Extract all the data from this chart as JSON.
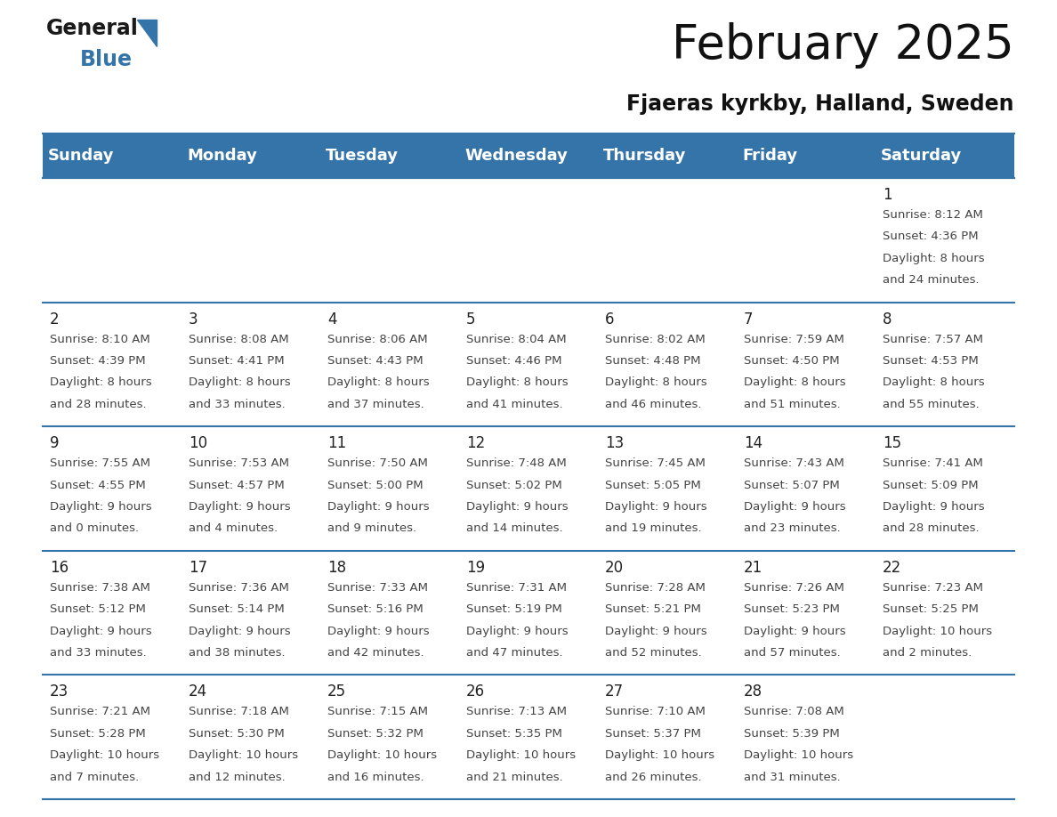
{
  "title": "February 2025",
  "subtitle": "Fjaeras kyrkby, Halland, Sweden",
  "header_color": "#3574a8",
  "header_text_color": "#ffffff",
  "days_of_week": [
    "Sunday",
    "Monday",
    "Tuesday",
    "Wednesday",
    "Thursday",
    "Friday",
    "Saturday"
  ],
  "background_color": "#ffffff",
  "cell_bg_white": "#ffffff",
  "cell_bg_gray": "#eef1f5",
  "border_color": "#3574a8",
  "day_number_color": "#222222",
  "info_text_color": "#444444",
  "calendar_data": [
    [
      {
        "day": null
      },
      {
        "day": null
      },
      {
        "day": null
      },
      {
        "day": null
      },
      {
        "day": null
      },
      {
        "day": null
      },
      {
        "day": 1,
        "sunrise": "8:12 AM",
        "sunset": "4:36 PM",
        "daylight": "8 hours and 24 minutes."
      }
    ],
    [
      {
        "day": 2,
        "sunrise": "8:10 AM",
        "sunset": "4:39 PM",
        "daylight": "8 hours and 28 minutes."
      },
      {
        "day": 3,
        "sunrise": "8:08 AM",
        "sunset": "4:41 PM",
        "daylight": "8 hours and 33 minutes."
      },
      {
        "day": 4,
        "sunrise": "8:06 AM",
        "sunset": "4:43 PM",
        "daylight": "8 hours and 37 minutes."
      },
      {
        "day": 5,
        "sunrise": "8:04 AM",
        "sunset": "4:46 PM",
        "daylight": "8 hours and 41 minutes."
      },
      {
        "day": 6,
        "sunrise": "8:02 AM",
        "sunset": "4:48 PM",
        "daylight": "8 hours and 46 minutes."
      },
      {
        "day": 7,
        "sunrise": "7:59 AM",
        "sunset": "4:50 PM",
        "daylight": "8 hours and 51 minutes."
      },
      {
        "day": 8,
        "sunrise": "7:57 AM",
        "sunset": "4:53 PM",
        "daylight": "8 hours and 55 minutes."
      }
    ],
    [
      {
        "day": 9,
        "sunrise": "7:55 AM",
        "sunset": "4:55 PM",
        "daylight": "9 hours and 0 minutes."
      },
      {
        "day": 10,
        "sunrise": "7:53 AM",
        "sunset": "4:57 PM",
        "daylight": "9 hours and 4 minutes."
      },
      {
        "day": 11,
        "sunrise": "7:50 AM",
        "sunset": "5:00 PM",
        "daylight": "9 hours and 9 minutes."
      },
      {
        "day": 12,
        "sunrise": "7:48 AM",
        "sunset": "5:02 PM",
        "daylight": "9 hours and 14 minutes."
      },
      {
        "day": 13,
        "sunrise": "7:45 AM",
        "sunset": "5:05 PM",
        "daylight": "9 hours and 19 minutes."
      },
      {
        "day": 14,
        "sunrise": "7:43 AM",
        "sunset": "5:07 PM",
        "daylight": "9 hours and 23 minutes."
      },
      {
        "day": 15,
        "sunrise": "7:41 AM",
        "sunset": "5:09 PM",
        "daylight": "9 hours and 28 minutes."
      }
    ],
    [
      {
        "day": 16,
        "sunrise": "7:38 AM",
        "sunset": "5:12 PM",
        "daylight": "9 hours and 33 minutes."
      },
      {
        "day": 17,
        "sunrise": "7:36 AM",
        "sunset": "5:14 PM",
        "daylight": "9 hours and 38 minutes."
      },
      {
        "day": 18,
        "sunrise": "7:33 AM",
        "sunset": "5:16 PM",
        "daylight": "9 hours and 42 minutes."
      },
      {
        "day": 19,
        "sunrise": "7:31 AM",
        "sunset": "5:19 PM",
        "daylight": "9 hours and 47 minutes."
      },
      {
        "day": 20,
        "sunrise": "7:28 AM",
        "sunset": "5:21 PM",
        "daylight": "9 hours and 52 minutes."
      },
      {
        "day": 21,
        "sunrise": "7:26 AM",
        "sunset": "5:23 PM",
        "daylight": "9 hours and 57 minutes."
      },
      {
        "day": 22,
        "sunrise": "7:23 AM",
        "sunset": "5:25 PM",
        "daylight": "10 hours and 2 minutes."
      }
    ],
    [
      {
        "day": 23,
        "sunrise": "7:21 AM",
        "sunset": "5:28 PM",
        "daylight": "10 hours and 7 minutes."
      },
      {
        "day": 24,
        "sunrise": "7:18 AM",
        "sunset": "5:30 PM",
        "daylight": "10 hours and 12 minutes."
      },
      {
        "day": 25,
        "sunrise": "7:15 AM",
        "sunset": "5:32 PM",
        "daylight": "10 hours and 16 minutes."
      },
      {
        "day": 26,
        "sunrise": "7:13 AM",
        "sunset": "5:35 PM",
        "daylight": "10 hours and 21 minutes."
      },
      {
        "day": 27,
        "sunrise": "7:10 AM",
        "sunset": "5:37 PM",
        "daylight": "10 hours and 26 minutes."
      },
      {
        "day": 28,
        "sunrise": "7:08 AM",
        "sunset": "5:39 PM",
        "daylight": "10 hours and 31 minutes."
      },
      {
        "day": null
      }
    ]
  ],
  "logo_text_general": "General",
  "logo_text_blue": "Blue",
  "logo_color_general": "#1a1a1a",
  "logo_color_blue": "#3574a8",
  "logo_triangle_color": "#3574a8"
}
